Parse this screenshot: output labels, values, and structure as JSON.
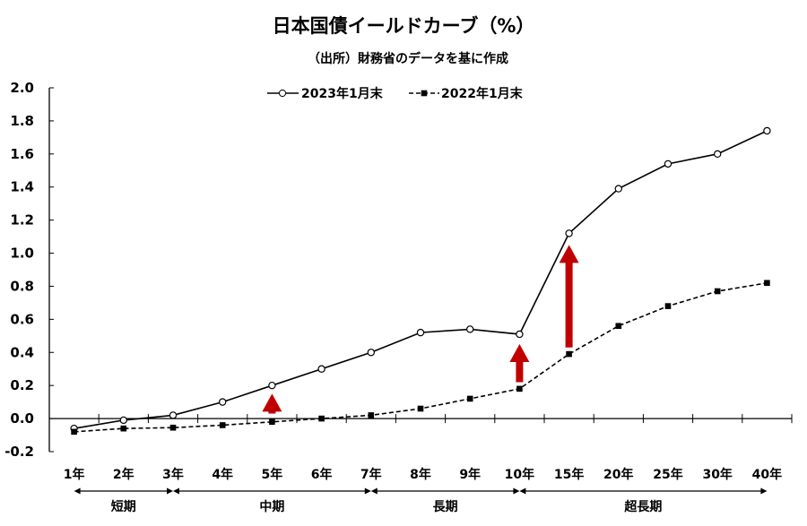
{
  "chart_data": {
    "type": "line",
    "title": "日本国債イールドカーブ（%）",
    "subtitle": "（出所）財務省のデータを基に作成",
    "categories": [
      "1年",
      "2年",
      "3年",
      "4年",
      "5年",
      "6年",
      "7年",
      "8年",
      "9年",
      "10年",
      "15年",
      "20年",
      "25年",
      "30年",
      "40年"
    ],
    "ylim": [
      -0.2,
      2.0
    ],
    "yticks": [
      "-0.2",
      "0.0",
      "0.2",
      "0.4",
      "0.6",
      "0.8",
      "1.0",
      "1.2",
      "1.4",
      "1.6",
      "1.8",
      "2.0"
    ],
    "legend_position": "top-center",
    "series": [
      {
        "name": "2023年1月末",
        "style": "solid-open-circle",
        "values": [
          -0.06,
          -0.01,
          0.02,
          0.1,
          0.2,
          0.3,
          0.4,
          0.52,
          0.54,
          0.51,
          1.12,
          1.39,
          1.54,
          1.6,
          1.74
        ]
      },
      {
        "name": "2022年1月末",
        "style": "dashed-square",
        "values": [
          -0.08,
          -0.06,
          -0.055,
          -0.04,
          -0.02,
          0.0,
          0.02,
          0.06,
          0.12,
          0.18,
          0.39,
          0.56,
          0.68,
          0.77,
          0.82
        ]
      }
    ],
    "arrows": [
      {
        "category": "5年",
        "from": 0.03,
        "to": 0.15
      },
      {
        "category": "10年",
        "from": 0.22,
        "to": 0.45
      },
      {
        "category": "15年",
        "from": 0.43,
        "to": 1.05
      }
    ],
    "groups": [
      {
        "label": "短期",
        "from": "1年",
        "to": "3年"
      },
      {
        "label": "中期",
        "from": "3年",
        "to": "7年"
      },
      {
        "label": "長期",
        "from": "7年",
        "to": "10年"
      },
      {
        "label": "超長期",
        "from": "10年",
        "to": "40年"
      }
    ],
    "colors": {
      "arrow": "#c00000",
      "line": "#000000"
    }
  }
}
